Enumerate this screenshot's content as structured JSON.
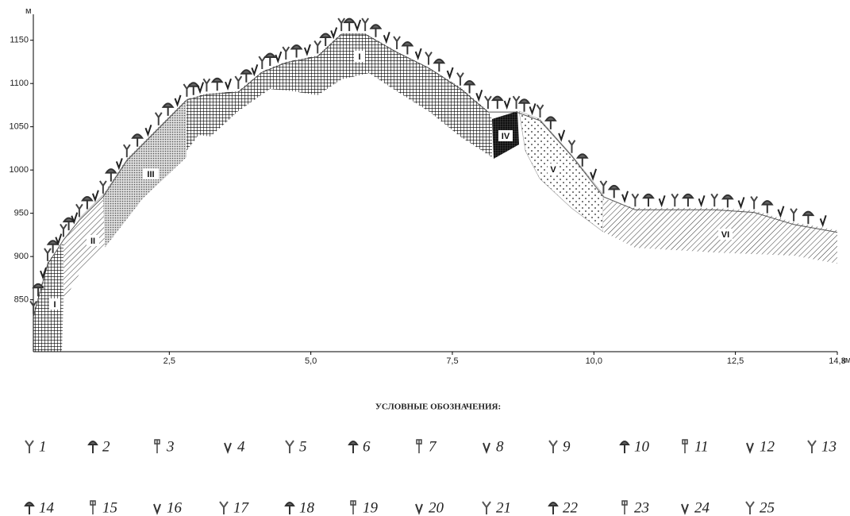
{
  "chart_data": {
    "type": "profile",
    "y_axis_label": "м",
    "x_axis_label": "км",
    "x": [
      0.1,
      0.35,
      0.63,
      0.91,
      1.33,
      1.75,
      2.31,
      2.81,
      3.16,
      3.72,
      4.14,
      4.56,
      5.12,
      5.54,
      5.96,
      6.52,
      7.08,
      7.64,
      8.13,
      8.63,
      9.05,
      9.61,
      10.17,
      10.73,
      11.43,
      12.13,
      12.83,
      13.53,
      14.3
    ],
    "values": [
      830,
      891,
      919,
      942,
      969,
      1011,
      1048,
      1081,
      1087,
      1090,
      1113,
      1124,
      1131,
      1157,
      1157,
      1136,
      1118,
      1094,
      1067,
      1067,
      1057,
      1016,
      969,
      954,
      954,
      954,
      951,
      937,
      928
    ],
    "color": "#555555",
    "xlim": [
      0,
      14.3
    ],
    "ylim": [
      790,
      1180
    ],
    "xticks": [
      {
        "value": 2.5,
        "label": "2,5"
      },
      {
        "value": 5,
        "label": "5,0"
      },
      {
        "value": 7.5,
        "label": "7,5"
      },
      {
        "value": 10,
        "label": "10,0"
      },
      {
        "value": 12.5,
        "label": "12,5"
      },
      {
        "value": 14.3,
        "label": "14,3"
      }
    ],
    "yticks": [
      850,
      900,
      950,
      1000,
      1050,
      1100,
      1150
    ],
    "zones": [
      "I",
      "II",
      "III",
      "I",
      "IV",
      "V",
      "VI"
    ]
  },
  "legend": {
    "title": "УСЛОВНЫЕ ОБОЗНАЧЕНИЯ:",
    "items": [
      "1",
      "2",
      "3",
      "4",
      "5",
      "6",
      "7",
      "8",
      "9",
      "10",
      "11",
      "12",
      "13",
      "14",
      "15",
      "16",
      "17",
      "18",
      "19",
      "20",
      "21",
      "22",
      "23",
      "24",
      "25"
    ]
  }
}
